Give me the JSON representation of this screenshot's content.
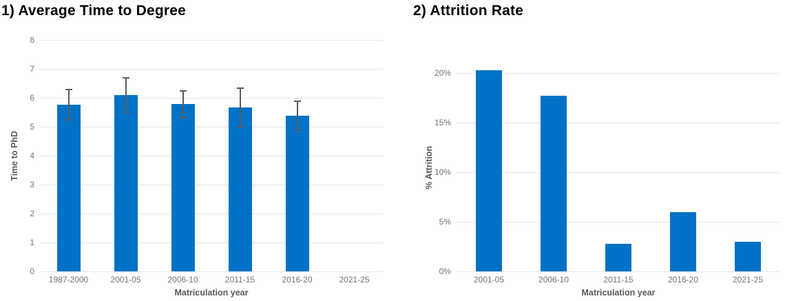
{
  "colors": {
    "bar": "#0072C6",
    "error_bar": "#595959",
    "gridline": "#E6E6E6",
    "tick_text": "#737373",
    "axis_title_text": "#595959",
    "title_text": "#000000",
    "background": "#FFFFFF"
  },
  "chart_data": [
    {
      "type": "bar",
      "title": "1) Average Time to Degree",
      "xlabel": "Matriculation year",
      "ylabel": "Time to PhD",
      "categories": [
        "1987-2000",
        "2001-05",
        "2006-10",
        "2011-15",
        "2016-20",
        "2021-25"
      ],
      "values": [
        5.77,
        6.1,
        5.78,
        5.67,
        5.38,
        null
      ],
      "error_bars": [
        0.52,
        0.6,
        0.46,
        0.67,
        0.5,
        null
      ],
      "ylim": [
        0,
        8
      ],
      "yticks": [
        0,
        1,
        2,
        3,
        4,
        5,
        6,
        7,
        8
      ],
      "ytick_labels": [
        "0",
        "1",
        "2",
        "3",
        "4",
        "5",
        "6",
        "7",
        "8"
      ],
      "grid": true,
      "legend": false
    },
    {
      "type": "bar",
      "title": "2) Attrition Rate",
      "xlabel": "Matriculation year",
      "ylabel": "% Attrition",
      "categories": [
        "2001-05",
        "2006-10",
        "2011-15",
        "2016-20",
        "2021-25"
      ],
      "values": [
        20.3,
        17.7,
        2.8,
        6.0,
        3.0
      ],
      "error_bars": [
        null,
        null,
        null,
        null,
        null
      ],
      "ylim": [
        0,
        21
      ],
      "yticks": [
        0,
        5,
        10,
        15,
        20
      ],
      "ytick_labels": [
        "0%",
        "5%",
        "10%",
        "15%",
        "20%"
      ],
      "grid": true,
      "legend": false
    }
  ]
}
